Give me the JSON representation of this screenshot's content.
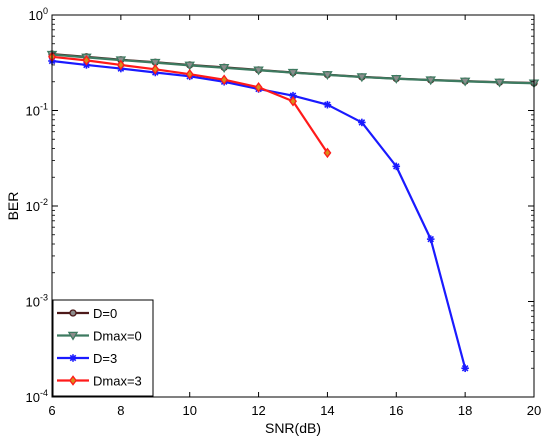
{
  "chart_data": {
    "type": "line",
    "title": "",
    "xlabel": "SNR(dB)",
    "ylabel": "BER",
    "xlim": [
      6,
      20
    ],
    "ylim": [
      0.0001,
      1
    ],
    "yscale": "log",
    "x_ticks": [
      6,
      8,
      10,
      12,
      14,
      16,
      18,
      20
    ],
    "x_tick_labels": [
      "6",
      "8",
      "10",
      "12",
      "14",
      "16",
      "18",
      "20"
    ],
    "y_ticks": [
      {
        "value": 1,
        "base": "10",
        "exp": "0"
      },
      {
        "value": 0.1,
        "base": "10",
        "exp": "-1"
      },
      {
        "value": 0.01,
        "base": "10",
        "exp": "-2"
      },
      {
        "value": 0.001,
        "base": "10",
        "exp": "-3"
      },
      {
        "value": 0.0001,
        "base": "10",
        "exp": "-4"
      }
    ],
    "grid": false,
    "legend_position": "bottom-left",
    "series": [
      {
        "name": "D=0",
        "color": "#4d1a1a",
        "marker": "circle",
        "marker_fill": "#8c8c8c",
        "x": [
          6,
          7,
          8,
          9,
          10,
          11,
          12,
          13,
          14,
          15,
          16,
          17,
          18,
          19,
          20
        ],
        "y": [
          0.39,
          0.365,
          0.34,
          0.32,
          0.3,
          0.283,
          0.266,
          0.25,
          0.237,
          0.225,
          0.216,
          0.209,
          0.203,
          0.198,
          0.194
        ]
      },
      {
        "name": "Dmax=0",
        "color": "#3d7a60",
        "marker": "triangle-down",
        "marker_fill": "#8c8c8c",
        "x": [
          6,
          7,
          8,
          9,
          10,
          11,
          12,
          13,
          14,
          15,
          16,
          17,
          18,
          19,
          20
        ],
        "y": [
          0.385,
          0.36,
          0.337,
          0.317,
          0.297,
          0.28,
          0.264,
          0.249,
          0.236,
          0.224,
          0.215,
          0.208,
          0.202,
          0.197,
          0.193
        ]
      },
      {
        "name": "D=3",
        "color": "#1a1aff",
        "marker": "asterisk",
        "marker_fill": "#1a1aff",
        "x": [
          6,
          7,
          8,
          9,
          10,
          11,
          12,
          13,
          14,
          15,
          16,
          17,
          18
        ],
        "y": [
          0.33,
          0.3,
          0.275,
          0.25,
          0.228,
          0.2,
          0.168,
          0.143,
          0.115,
          0.075,
          0.026,
          0.0045,
          0.0002
        ]
      },
      {
        "name": "Dmax=3",
        "color": "#ff1a1a",
        "marker": "diamond",
        "marker_fill": "#d98c1a",
        "x": [
          6,
          7,
          8,
          9,
          10,
          11,
          12,
          13,
          14
        ],
        "y": [
          0.365,
          0.335,
          0.3,
          0.27,
          0.24,
          0.21,
          0.175,
          0.125,
          0.036
        ]
      }
    ]
  }
}
